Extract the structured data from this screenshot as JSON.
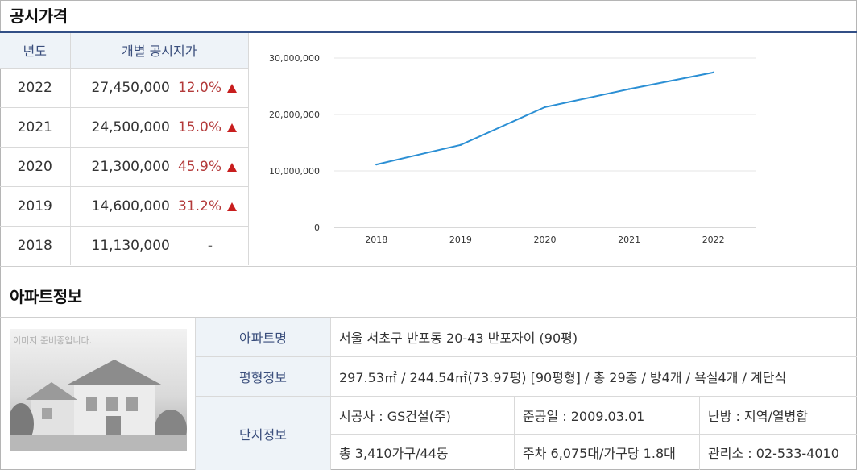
{
  "price_section": {
    "title": "공시가격",
    "headers": {
      "year": "년도",
      "price": "개별 공시지가"
    },
    "rows": [
      {
        "year": "2022",
        "price": "27,450,000",
        "change": "12.0%",
        "up": true
      },
      {
        "year": "2021",
        "price": "24,500,000",
        "change": "15.0%",
        "up": true
      },
      {
        "year": "2020",
        "price": "21,300,000",
        "change": "45.9%",
        "up": true
      },
      {
        "year": "2019",
        "price": "14,600,000",
        "change": "31.2%",
        "up": true
      },
      {
        "year": "2018",
        "price": "11,130,000",
        "change": "-",
        "up": false
      }
    ],
    "up_icon": "up-triangle-icon",
    "colors": {
      "up": "#c81e1e",
      "change_text": "#b33a3a",
      "header_bg": "#eef3f8",
      "accent": "#324f86"
    }
  },
  "chart_data": {
    "type": "line",
    "x": [
      "2018",
      "2019",
      "2020",
      "2021",
      "2022"
    ],
    "series": [
      {
        "values": [
          11130000,
          14600000,
          21300000,
          24500000,
          27450000
        ],
        "color": "#2b8fd4"
      }
    ],
    "y_ticks": [
      "0",
      "10,000,000",
      "20,000,000",
      "30,000,000"
    ],
    "ylim": [
      0,
      30000000
    ],
    "grid": true,
    "legend": "none"
  },
  "apartment_section": {
    "title": "아파트정보",
    "photo_caption": "이미지 준비중입니다.",
    "name_label": "아파트명",
    "name_value": "서울 서초구 반포동 20-43 반포자이 (90평)",
    "size_label": "평형정보",
    "size_value": "297.53㎡ / 244.54㎡(73.97평) [90평형] / 총 29층 / 방4개 / 욕실4개 / 계단식",
    "complex_label": "단지정보",
    "complex": {
      "builder": "시공사 : GS건설(주)",
      "completion": "준공일 : 2009.03.01",
      "heating": "난방 : 지역/열병합",
      "households": "총 3,410가구/44동",
      "parking": "주차 6,075대/가구당 1.8대",
      "office": "관리소 : 02-533-4010"
    }
  }
}
